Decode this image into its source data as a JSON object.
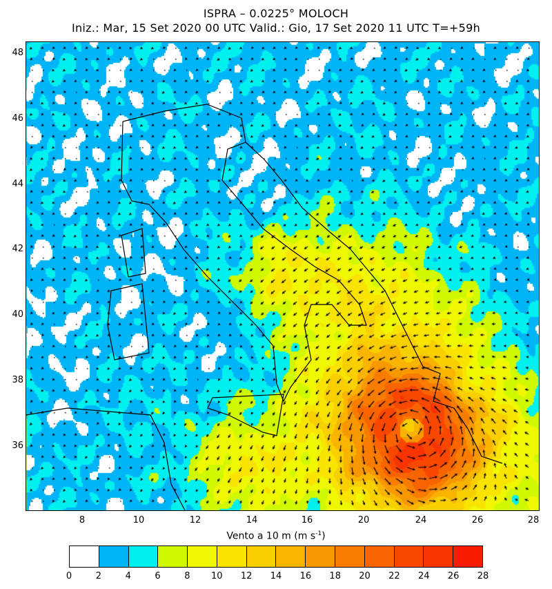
{
  "title": "ISPRA – 0.0225° MOLOCH",
  "subtitle": "Iniz.: Mar, 15 Set 2020  00 UTC  Valid.: Gio, 17 Set 2020  11 UTC  T=+59h",
  "map": {
    "lat_ticks": [
      "48",
      "46",
      "44",
      "42",
      "40",
      "38",
      "36"
    ],
    "lon_ticks": [
      "8",
      "10",
      "12",
      "14",
      "16",
      "20",
      "24",
      "26",
      "28"
    ]
  },
  "colorbar": {
    "title": "Vento a 10 m (m s",
    "title_sup": "-1",
    "title_end": ")",
    "labels": [
      "0",
      "2",
      "4",
      "6",
      "8",
      "10",
      "12",
      "14",
      "16",
      "18",
      "20",
      "22",
      "24",
      "26",
      "28"
    ],
    "colors": [
      "#ffffff",
      "#00b4f8",
      "#00f0f0",
      "#d0f800",
      "#f0f800",
      "#f8e400",
      "#f8d000",
      "#f8b400",
      "#f89800",
      "#f87c00",
      "#f86400",
      "#f84800",
      "#f83400",
      "#f81c00"
    ]
  }
}
